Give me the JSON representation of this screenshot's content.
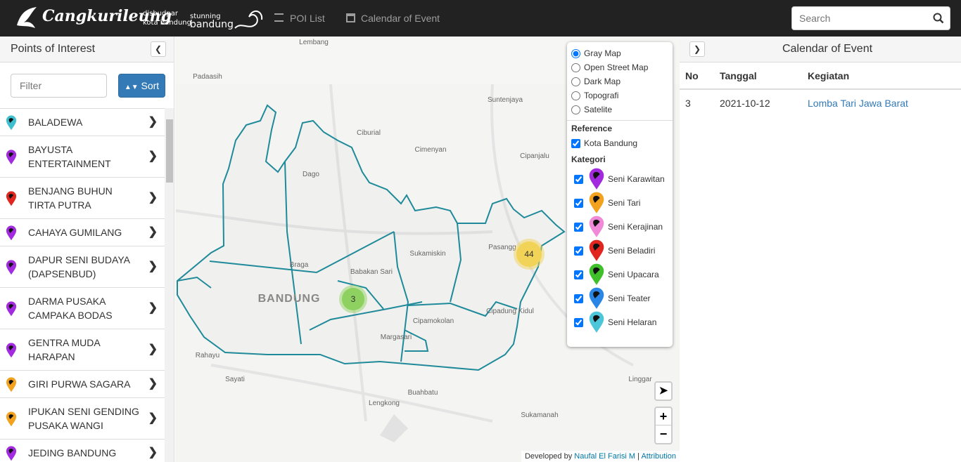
{
  "navbar": {
    "brand": "Cangkurileung",
    "logos": [
      "disbudpar",
      "kota bandung",
      "stunning",
      "bandung"
    ],
    "links": [
      "POI List",
      "Calendar of Event"
    ],
    "search_placeholder": "Search"
  },
  "sidebar": {
    "title": "Points of Interest",
    "filter_placeholder": "Filter",
    "sort_label": "Sort",
    "items": [
      {
        "name": "BALADEWA",
        "color": "#3fbfcf"
      },
      {
        "name": "BAYUSTA ENTERTAINMENT",
        "color": "#a22be0"
      },
      {
        "name": "BENJANG BUHUN TIRTA PUTRA",
        "color": "#e0261f"
      },
      {
        "name": "CAHAYA GUMILANG",
        "color": "#a22be0"
      },
      {
        "name": "DAPUR SENI BUDAYA (DAPSENBUD)",
        "color": "#a22be0"
      },
      {
        "name": "DARMA PUSAKA CAMPAKA BODAS",
        "color": "#a22be0"
      },
      {
        "name": "GENTRA MUDA HARAPAN",
        "color": "#a22be0"
      },
      {
        "name": "GIRI PURWA SAGARA",
        "color": "#f3a21f"
      },
      {
        "name": "IPUKAN SENI GENDING PUSAKA WANGI",
        "color": "#f3a21f"
      },
      {
        "name": "JEDING BANDUNG",
        "color": "#a22be0"
      }
    ]
  },
  "map": {
    "city_label": "BANDUNG",
    "place_labels": [
      "Lembang",
      "Padaasih",
      "Suntenjaya",
      "Ciburial",
      "Cimenyan",
      "Cipanjalu",
      "Dago",
      "Pasangg",
      "Sukamiskin",
      "Braga",
      "Babakan Sari",
      "Cipadung Kidul",
      "Cipamokolan",
      "Margasari",
      "Rahayu",
      "Sayati",
      "Buahbatu",
      "Lengkong",
      "Linggar",
      "Sukamanah"
    ],
    "clusters": [
      {
        "count": 3,
        "color": "#8fd160"
      },
      {
        "count": 44,
        "color": "#f1d357"
      }
    ],
    "layers": {
      "basemaps": [
        "Gray Map",
        "Open Street Map",
        "Dark Map",
        "Topografi",
        "Satelite"
      ],
      "selected": "Gray Map",
      "reference_title": "Reference",
      "references": [
        "Kota Bandung"
      ],
      "category_title": "Kategori",
      "categories": [
        {
          "name": "Seni Karawitan",
          "color": "#a22be0"
        },
        {
          "name": "Seni Tari",
          "color": "#f3a21f"
        },
        {
          "name": "Seni Kerajinan",
          "color": "#f08ad8"
        },
        {
          "name": "Seni Beladiri",
          "color": "#e0261f"
        },
        {
          "name": "Seni Upacara",
          "color": "#3fbf2a"
        },
        {
          "name": "Seni Teater",
          "color": "#2a86e6"
        },
        {
          "name": "Seni Helaran",
          "color": "#4cc6d8"
        }
      ]
    },
    "zoom": [
      "+",
      "−"
    ],
    "attribution": {
      "prefix": "Developed by",
      "author": "Naufal El Farisi M",
      "separator": "|",
      "link": "Attribution"
    }
  },
  "calendar": {
    "title": "Calendar of Event",
    "columns": [
      "No",
      "Tanggal",
      "Kegiatan"
    ],
    "rows": [
      [
        "3",
        "2021-10-12",
        "Lomba Tari Jawa Barat"
      ]
    ]
  }
}
